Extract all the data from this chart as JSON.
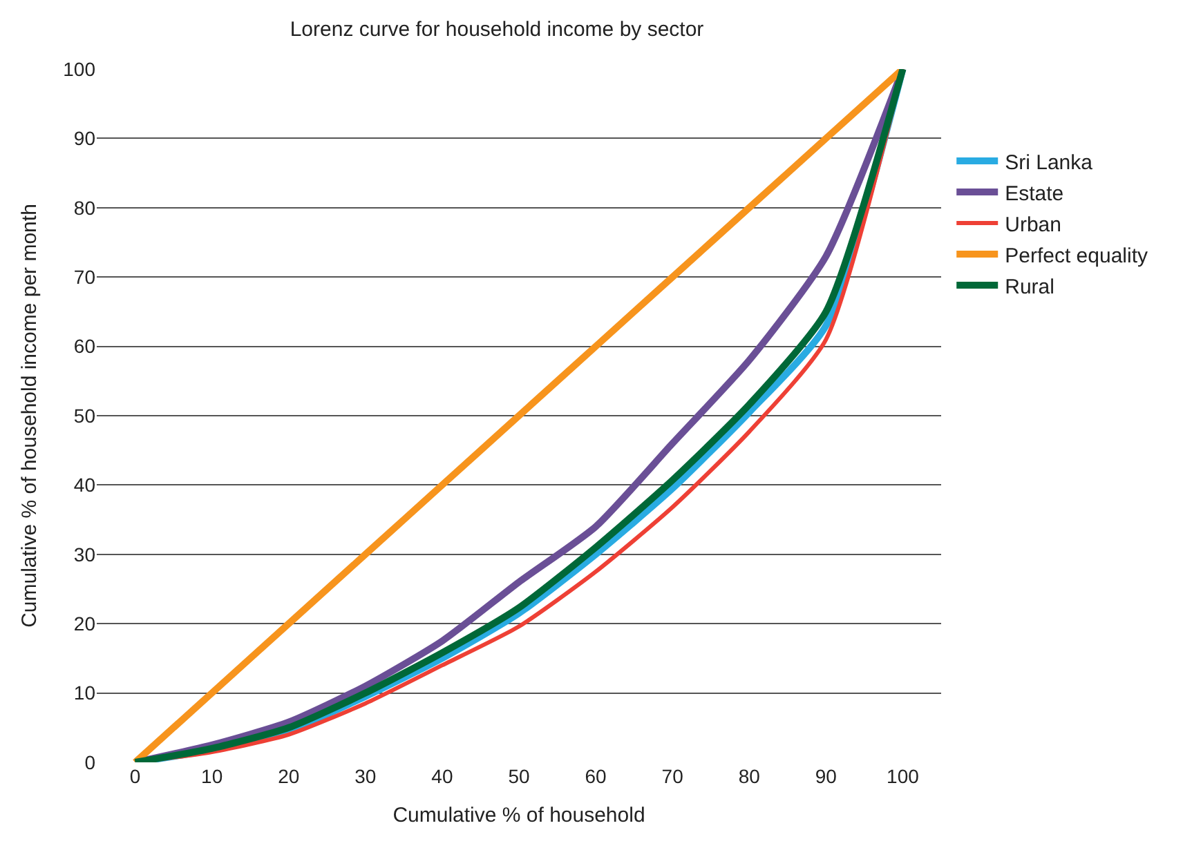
{
  "chart_data": {
    "type": "line",
    "title": "Lorenz curve for household income by sector",
    "xlabel": "Cumulative % of household",
    "ylabel": "Cumulative % of household income per month",
    "x": [
      0,
      10,
      20,
      30,
      40,
      50,
      60,
      70,
      80,
      90,
      100
    ],
    "series": [
      {
        "name": "Sri Lanka",
        "color": "#29abe2",
        "values": [
          0,
          1.8,
          4.6,
          9.5,
          15,
          21.5,
          30,
          39.5,
          50.5,
          63,
          100
        ]
      },
      {
        "name": "Estate",
        "color": "#6a4f96",
        "values": [
          0,
          2.5,
          5.8,
          11,
          17.5,
          26,
          34,
          46,
          58,
          73,
          100
        ]
      },
      {
        "name": "Urban",
        "color": "#ee4035",
        "values": [
          0,
          1.5,
          4,
          8.5,
          14,
          19.6,
          27.5,
          36.8,
          47.7,
          61,
          100
        ]
      },
      {
        "name": "Perfect equality",
        "color": "#f7941d",
        "values": [
          0,
          10,
          20,
          30,
          40,
          50,
          60,
          70,
          80,
          90,
          100
        ]
      },
      {
        "name": "Rural",
        "color": "#006838",
        "values": [
          0,
          2,
          5,
          10,
          15.8,
          22.3,
          31,
          40.7,
          51.6,
          65,
          100
        ]
      }
    ],
    "xlim": [
      -5,
      105
    ],
    "xticks": [
      0,
      10,
      20,
      30,
      40,
      50,
      60,
      70,
      80,
      90,
      100
    ],
    "ylim": [
      0,
      100
    ],
    "yticks": [
      0,
      10,
      20,
      30,
      40,
      50,
      60,
      70,
      80,
      90,
      100
    ],
    "grid": "y",
    "legend": "right",
    "marker": "none",
    "line_style": "solid"
  }
}
